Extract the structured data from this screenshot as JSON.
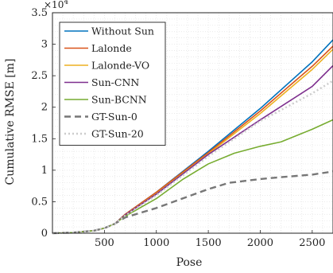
{
  "chart_data": {
    "type": "line",
    "title": "",
    "xlabel": "Pose",
    "ylabel": "Cumulative RMSE [m]",
    "y_exponent_label": "×10",
    "y_exponent_power": "4",
    "xlim": [
      0,
      2700
    ],
    "ylim": [
      0,
      3.5
    ],
    "x_ticks": [
      500,
      1000,
      1500,
      2000,
      2500
    ],
    "x_tick_labels": [
      "500",
      "1000",
      "1500",
      "2000",
      "2500"
    ],
    "y_ticks": [
      0,
      0.5,
      1,
      1.5,
      2,
      2.5,
      3,
      3.5
    ],
    "y_tick_labels": [
      "0",
      "0.5",
      "1",
      "1.5",
      "2",
      "2.5",
      "3",
      "3.5"
    ],
    "grid": true,
    "legend_position": "top-left",
    "series": [
      {
        "name": "Without Sun",
        "color": "#0072BD",
        "dash": "solid",
        "x": [
          0,
          200,
          400,
          500,
          600,
          700,
          1000,
          1500,
          2000,
          2500,
          2700
        ],
        "y": [
          0,
          0.01,
          0.04,
          0.08,
          0.15,
          0.3,
          0.65,
          1.3,
          1.98,
          2.72,
          3.07
        ]
      },
      {
        "name": "Lalonde",
        "color": "#D95319",
        "dash": "solid",
        "x": [
          0,
          200,
          400,
          500,
          600,
          700,
          1000,
          1500,
          2000,
          2500,
          2700
        ],
        "y": [
          0,
          0.01,
          0.04,
          0.08,
          0.15,
          0.3,
          0.65,
          1.28,
          1.94,
          2.65,
          2.97
        ]
      },
      {
        "name": "Lalonde-VO",
        "color": "#EDB120",
        "dash": "solid",
        "x": [
          0,
          200,
          400,
          500,
          600,
          700,
          1000,
          1500,
          2000,
          2500,
          2700
        ],
        "y": [
          0,
          0.01,
          0.04,
          0.08,
          0.15,
          0.29,
          0.63,
          1.26,
          1.9,
          2.6,
          2.92
        ]
      },
      {
        "name": "Sun-CNN",
        "color": "#7E2F8E",
        "dash": "solid",
        "x": [
          0,
          200,
          400,
          500,
          600,
          700,
          1000,
          1500,
          2000,
          2500,
          2700
        ],
        "y": [
          0,
          0.01,
          0.04,
          0.08,
          0.15,
          0.29,
          0.62,
          1.25,
          1.8,
          2.33,
          2.66
        ]
      },
      {
        "name": "Sun-BCNN",
        "color": "#77AC30",
        "dash": "solid",
        "x": [
          0,
          200,
          400,
          500,
          600,
          700,
          1000,
          1250,
          1500,
          1750,
          2000,
          2200,
          2500,
          2700
        ],
        "y": [
          0,
          0.01,
          0.04,
          0.08,
          0.15,
          0.27,
          0.55,
          0.85,
          1.1,
          1.27,
          1.38,
          1.45,
          1.65,
          1.8
        ]
      },
      {
        "name": "GT-Sun-0",
        "color": "#777777",
        "dash": "dashed",
        "x": [
          0,
          200,
          400,
          500,
          600,
          700,
          1000,
          1300,
          1500,
          1700,
          2000,
          2200,
          2500,
          2700
        ],
        "y": [
          0,
          0.01,
          0.04,
          0.08,
          0.15,
          0.25,
          0.4,
          0.58,
          0.7,
          0.8,
          0.86,
          0.89,
          0.93,
          0.98
        ]
      },
      {
        "name": "GT-Sun-20",
        "color": "#CCCCCC",
        "dash": "dotted",
        "x": [
          0,
          200,
          400,
          500,
          600,
          700,
          1000,
          1500,
          2000,
          2500,
          2700
        ],
        "y": [
          0,
          0.01,
          0.04,
          0.08,
          0.15,
          0.28,
          0.6,
          1.22,
          1.78,
          2.22,
          2.42
        ]
      }
    ]
  }
}
